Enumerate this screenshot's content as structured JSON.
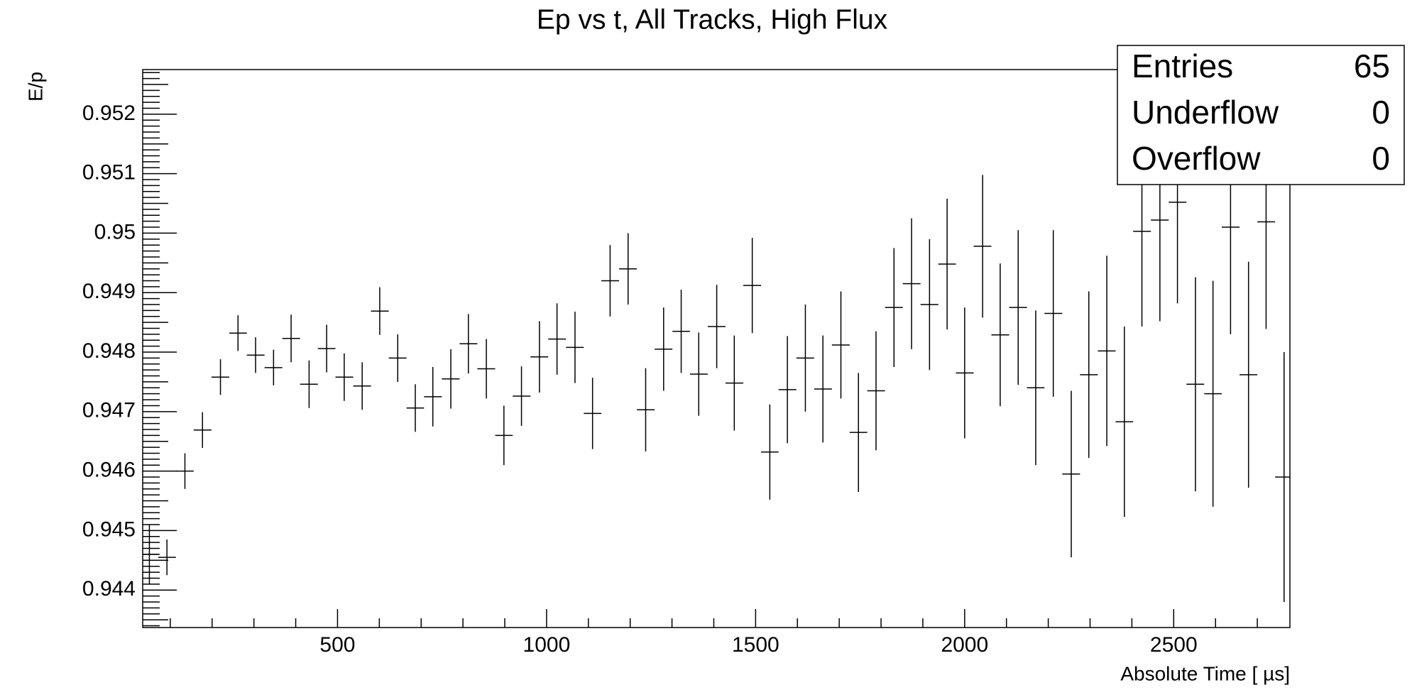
{
  "chart_data": {
    "type": "errorbar",
    "title": "Ep vs t, All Tracks, High Flux",
    "x_label": "Absolute Time [ µs]",
    "y_label": "E/p",
    "x": [
      50,
      92,
      135,
      177,
      220,
      262,
      304,
      347,
      389,
      432,
      474,
      516,
      559,
      601,
      644,
      686,
      728,
      771,
      813,
      856,
      898,
      940,
      983,
      1025,
      1068,
      1110,
      1152,
      1195,
      1237,
      1280,
      1322,
      1364,
      1407,
      1449,
      1492,
      1534,
      1576,
      1619,
      1661,
      1704,
      1746,
      1788,
      1831,
      1873,
      1916,
      1958,
      2000,
      2043,
      2085,
      2128,
      2170,
      2212,
      2255,
      2297,
      2340,
      2382,
      2424,
      2467,
      2509,
      2552,
      2594,
      2636,
      2679,
      2721,
      2764
    ],
    "values": [
      0.9446,
      0.94455,
      0.946,
      0.94669,
      0.94758,
      0.94832,
      0.94795,
      0.94774,
      0.94823,
      0.94746,
      0.94806,
      0.94758,
      0.94743,
      0.94869,
      0.9479,
      0.94706,
      0.94725,
      0.94755,
      0.94814,
      0.94772,
      0.9466,
      0.94726,
      0.94792,
      0.94822,
      0.94808,
      0.94697,
      0.9492,
      0.9494,
      0.94703,
      0.94805,
      0.94835,
      0.94763,
      0.94843,
      0.94748,
      0.94912,
      0.94632,
      0.94737,
      0.9479,
      0.94738,
      0.94812,
      0.94665,
      0.94735,
      0.94875,
      0.94915,
      0.9488,
      0.94948,
      0.94765,
      0.94978,
      0.94829,
      0.94875,
      0.9474,
      0.94865,
      0.94595,
      0.94762,
      0.94802,
      0.94683,
      0.95003,
      0.95022,
      0.95052,
      0.94746,
      0.9473,
      0.9501,
      0.94762,
      0.95019,
      0.9459
    ],
    "errors": [
      0.0005,
      0.0003,
      0.0003,
      0.0003,
      0.0003,
      0.0003,
      0.0003,
      0.0003,
      0.0004,
      0.0004,
      0.0004,
      0.0004,
      0.0004,
      0.0004,
      0.0004,
      0.0004,
      0.0005,
      0.0005,
      0.0005,
      0.0005,
      0.0005,
      0.0005,
      0.0006,
      0.0006,
      0.0006,
      0.0006,
      0.0006,
      0.0006,
      0.0007,
      0.0007,
      0.0007,
      0.0007,
      0.0007,
      0.0008,
      0.0008,
      0.0008,
      0.0009,
      0.0009,
      0.0009,
      0.0009,
      0.001,
      0.001,
      0.001,
      0.0011,
      0.0011,
      0.0011,
      0.0011,
      0.0012,
      0.0012,
      0.0013,
      0.0013,
      0.0014,
      0.0014,
      0.0014,
      0.0016,
      0.0016,
      0.0016,
      0.0017,
      0.0017,
      0.0018,
      0.0019,
      0.0018,
      0.0019,
      0.0018,
      0.0021
    ],
    "color": "#000000",
    "xlim": [
      34,
      2778
    ],
    "xticks": [
      500,
      1000,
      1500,
      2000,
      2500
    ],
    "ylim": [
      0.94337,
      0.95275
    ],
    "yticks": [
      0.944,
      0.945,
      0.946,
      0.947,
      0.948,
      0.949,
      0.95,
      0.951,
      0.952
    ],
    "stats": [
      {
        "label": "Entries",
        "value": 65
      },
      {
        "label": "Underflow",
        "value": 0
      },
      {
        "label": "Overflow",
        "value": 0
      }
    ]
  }
}
